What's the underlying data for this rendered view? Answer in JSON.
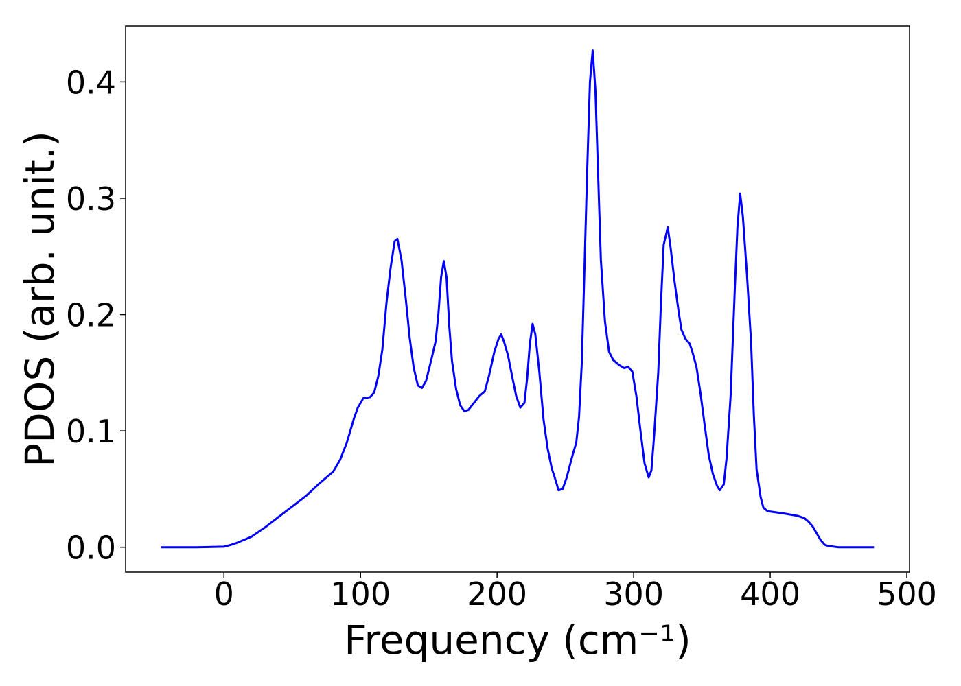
{
  "chart_data": {
    "type": "line",
    "xlabel": "Frequency (cm⁻¹)",
    "ylabel": "PDOS (arb. unit.)",
    "xlim": [
      -72,
      502
    ],
    "ylim": [
      -0.0214,
      0.448
    ],
    "xticks": [
      0,
      100,
      200,
      300,
      400,
      500
    ],
    "yticks": [
      {
        "value": 0,
        "label": "0.0"
      },
      0.1,
      0.2,
      0.3,
      0.4
    ],
    "series": [
      {
        "color": "#0000ff",
        "x": [
          -46,
          -20,
          0,
          5,
          10,
          20,
          30,
          40,
          50,
          60,
          70,
          80,
          85,
          90,
          95,
          98,
          102,
          107,
          110,
          113,
          116,
          119,
          122,
          125,
          127,
          130,
          133,
          136,
          139,
          142,
          145,
          148,
          152,
          155,
          157,
          159,
          161,
          163,
          165,
          167,
          170,
          173,
          176,
          179,
          183,
          187,
          191,
          194,
          198,
          201,
          203,
          205,
          208,
          211,
          214,
          217,
          220,
          222,
          224,
          226,
          228,
          231,
          234,
          237,
          240,
          243,
          245,
          248,
          251,
          255,
          258,
          260,
          262,
          264,
          266,
          268,
          270,
          272,
          274,
          276,
          279,
          282,
          285,
          289,
          293,
          296,
          299,
          302,
          305,
          308,
          311,
          313,
          315,
          318,
          320,
          322,
          325,
          327,
          330,
          333,
          335,
          338,
          341,
          343,
          346,
          349,
          352,
          355,
          358,
          361,
          363,
          366,
          368,
          371,
          374,
          376,
          378,
          380,
          383,
          386,
          388,
          390,
          393,
          395,
          398,
          410,
          420,
          425,
          428,
          431,
          434,
          437,
          440,
          443,
          450,
          476
        ],
        "values": [
          0,
          0,
          0.0005,
          0.002,
          0.004,
          0.009,
          0.017,
          0.026,
          0.035,
          0.044,
          0.055,
          0.065,
          0.075,
          0.09,
          0.11,
          0.12,
          0.128,
          0.129,
          0.133,
          0.147,
          0.17,
          0.21,
          0.24,
          0.263,
          0.265,
          0.247,
          0.215,
          0.18,
          0.154,
          0.139,
          0.137,
          0.143,
          0.162,
          0.177,
          0.2,
          0.232,
          0.246,
          0.232,
          0.19,
          0.16,
          0.136,
          0.122,
          0.117,
          0.118,
          0.124,
          0.13,
          0.134,
          0.147,
          0.168,
          0.179,
          0.183,
          0.177,
          0.165,
          0.147,
          0.13,
          0.12,
          0.124,
          0.145,
          0.175,
          0.192,
          0.183,
          0.15,
          0.11,
          0.085,
          0.068,
          0.057,
          0.049,
          0.05,
          0.06,
          0.078,
          0.09,
          0.112,
          0.158,
          0.24,
          0.325,
          0.4,
          0.427,
          0.393,
          0.32,
          0.247,
          0.194,
          0.168,
          0.161,
          0.157,
          0.154,
          0.155,
          0.151,
          0.13,
          0.1,
          0.072,
          0.06,
          0.066,
          0.096,
          0.15,
          0.21,
          0.26,
          0.275,
          0.258,
          0.228,
          0.202,
          0.187,
          0.179,
          0.175,
          0.168,
          0.155,
          0.132,
          0.105,
          0.079,
          0.063,
          0.053,
          0.049,
          0.054,
          0.076,
          0.13,
          0.22,
          0.275,
          0.304,
          0.284,
          0.234,
          0.176,
          0.114,
          0.067,
          0.043,
          0.034,
          0.031,
          0.029,
          0.027,
          0.025,
          0.022,
          0.018,
          0.012,
          0.006,
          0.002,
          0.001,
          0,
          0
        ]
      }
    ]
  }
}
